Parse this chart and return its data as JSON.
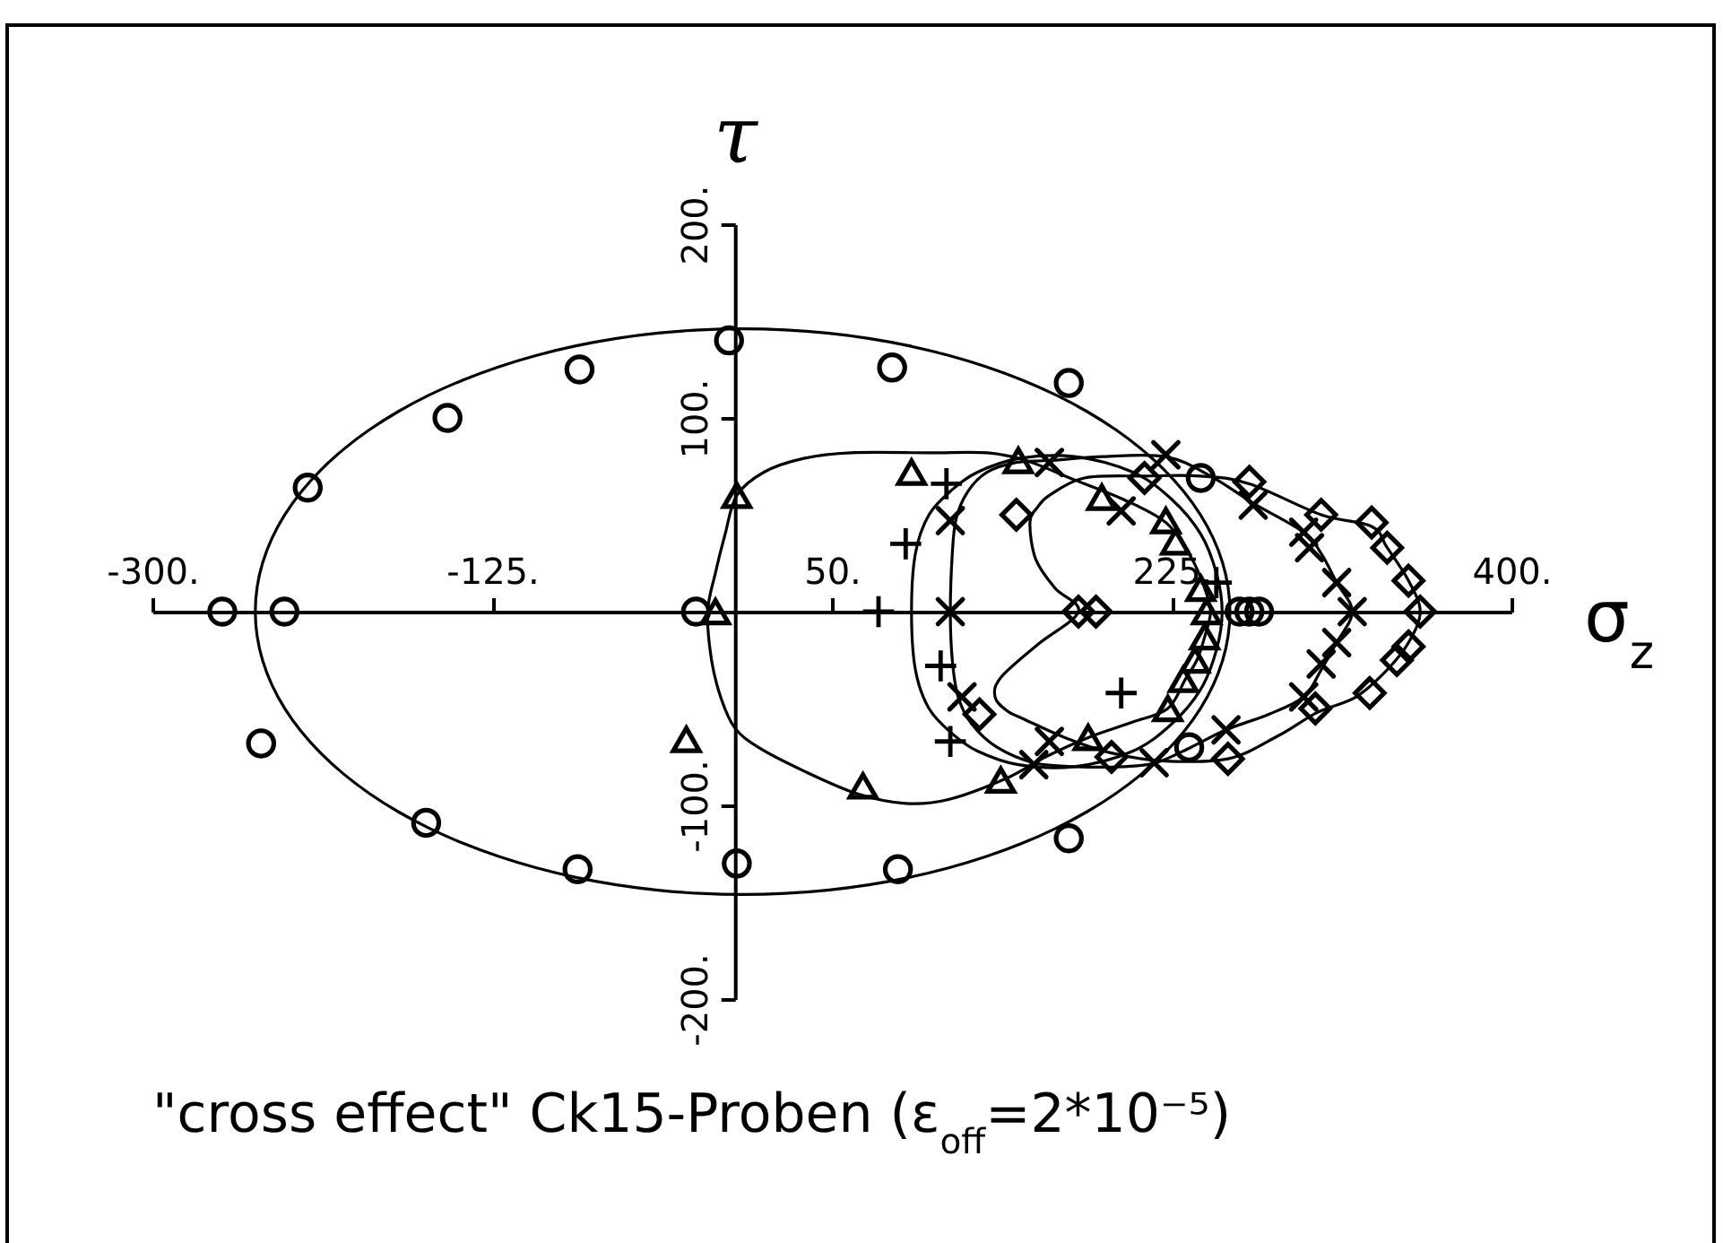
{
  "chart_data": {
    "type": "scatter",
    "title": "\"cross effect\" Ck15-Proben (ε$_{off}$=2*10⁻⁵)",
    "xlabel": "σ$_{z}$",
    "ylabel": "τ",
    "xlim": [
      -300,
      400
    ],
    "ylim": [
      -200,
      200
    ],
    "xticks": [
      {
        "value": -300,
        "label": "-300."
      },
      {
        "value": -125,
        "label": "-125."
      },
      {
        "value": 50,
        "label": "50."
      },
      {
        "value": 225,
        "label": "225."
      },
      {
        "value": 400,
        "label": "400."
      }
    ],
    "yticks": [
      {
        "value": -200,
        "label": "-200."
      },
      {
        "value": -100,
        "label": "-100."
      },
      {
        "value": 100,
        "label": "100."
      },
      {
        "value": 200,
        "label": "200."
      }
    ],
    "series": [
      {
        "marker": "circle",
        "color": "#000000",
        "x": [
          -3,
          -80,
          -148,
          -220,
          81,
          172,
          240,
          -264,
          -232,
          260,
          265,
          270,
          -244,
          -159,
          -81,
          1,
          84,
          172,
          234,
          -20
        ],
        "values": [
          140,
          125,
          100,
          64,
          126,
          118,
          69,
          0,
          0,
          0,
          0,
          0,
          -68,
          -109,
          -133,
          -130,
          -133,
          -117,
          -70,
          0
        ]
      },
      {
        "marker": "triangle",
        "color": "#000000",
        "x": [
          1,
          -10,
          -25,
          91,
          146,
          189,
          222,
          227,
          240,
          243,
          242,
          237,
          231,
          223,
          182,
          137,
          66
        ],
        "values": [
          60,
          0,
          -66,
          72,
          78,
          59,
          47,
          36,
          12,
          0,
          -13,
          -25,
          -35,
          -50,
          -65,
          -87,
          -90
        ]
      },
      {
        "marker": "cross",
        "color": "#000000",
        "x": [
          109,
          88,
          74,
          106,
          111,
          199,
          248
        ],
        "values": [
          66,
          35,
          0,
          -28,
          -67,
          -42,
          15
        ]
      },
      {
        "marker": "x",
        "color": "#000000",
        "x": [
          111,
          111,
          117,
          162,
          222,
          267,
          293,
          296,
          310,
          318,
          310,
          302,
          293,
          253,
          216,
          162,
          154,
          199
        ],
        "values": [
          47,
          0,
          -44,
          77,
          81,
          55,
          41,
          33,
          15,
          0,
          -16,
          -27,
          -44,
          -61,
          -78,
          -67,
          -79,
          52
        ]
      },
      {
        "marker": "diamond",
        "color": "#000000",
        "x": [
          145,
          126,
          177,
          186,
          211,
          265,
          302,
          328,
          336,
          347,
          353,
          347,
          341,
          327,
          299,
          254,
          194
        ],
        "values": [
          50,
          -53,
          0,
          0,
          69,
          67,
          50,
          46,
          33,
          16,
          0,
          -18,
          -25,
          -42,
          -50,
          -76,
          -75
        ]
      }
    ]
  }
}
